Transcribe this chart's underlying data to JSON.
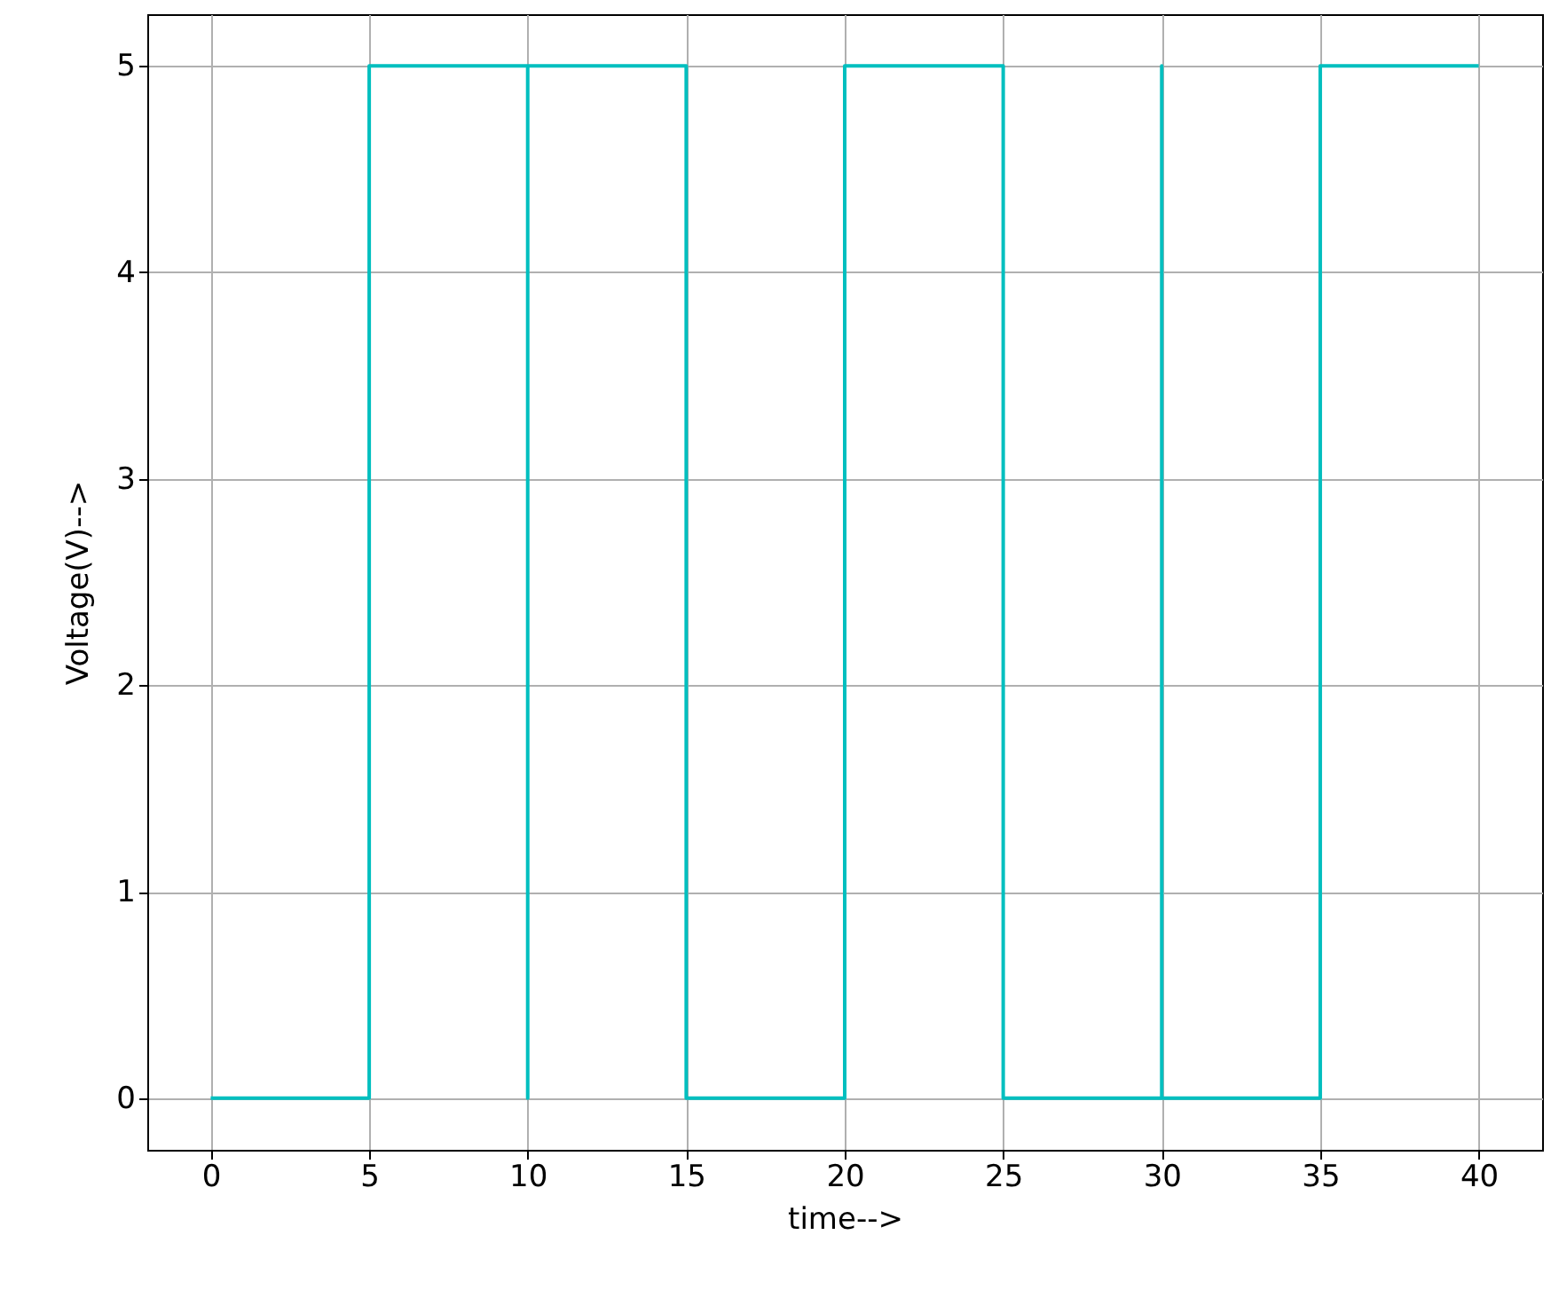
{
  "chart_data": {
    "type": "line",
    "xlabel": "time-->",
    "ylabel": "Voltage(V)-->",
    "x": [
      0,
      5,
      5,
      10,
      10,
      10,
      15,
      15,
      20,
      20,
      25,
      25,
      30,
      30,
      30,
      35,
      35,
      40
    ],
    "series": [
      {
        "color": "#00bfbf",
        "values": [
          0,
          0,
          5,
          5,
          0,
          5,
          5,
          0,
          0,
          5,
          5,
          0,
          0,
          5,
          0,
          0,
          5,
          5
        ]
      }
    ],
    "xlim": [
      -2,
      42
    ],
    "xticks": [
      0,
      5,
      10,
      15,
      20,
      25,
      30,
      35,
      40
    ],
    "ylim": [
      -0.25,
      5.25
    ],
    "yticks": [
      0,
      1,
      2,
      3,
      4,
      5
    ],
    "grid": true,
    "marker": "none",
    "line_style": "solid"
  }
}
